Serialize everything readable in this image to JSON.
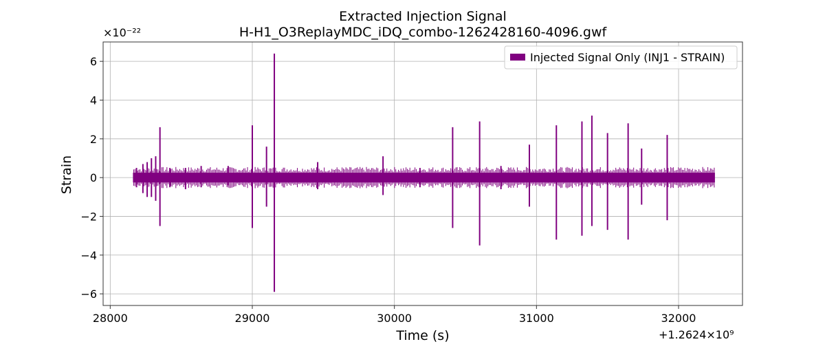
{
  "chart_data": {
    "type": "line",
    "title": "Extracted Injection Signal",
    "subtitle": "H-H1_O3ReplayMDC_iDQ_combo-1262428160-4096.gwf",
    "xlabel": "Time (s)",
    "ylabel": "Strain",
    "y_multiplier": "×10⁻²²",
    "x_offset": "+1.2624×10⁹",
    "xlim": [
      27950,
      32450
    ],
    "ylim": [
      -6.6,
      7.0
    ],
    "x_ticks": [
      28000,
      29000,
      30000,
      31000,
      32000
    ],
    "x_tick_labels": [
      "28000",
      "29000",
      "30000",
      "31000",
      "32000"
    ],
    "y_ticks": [
      -6,
      -4,
      -2,
      0,
      2,
      4,
      6
    ],
    "y_tick_labels": [
      "−6",
      "−4",
      "−2",
      "0",
      "2",
      "4",
      "6"
    ],
    "grid": true,
    "legend_position": "top-right",
    "series": [
      {
        "name": "Injected Signal Only (INJ1 - STRAIN)",
        "color": "#800080",
        "x_range": [
          28160,
          32256
        ],
        "baseline_amplitude": 0.25,
        "spikes": [
          {
            "x": 28185,
            "up": 0.5,
            "down": -0.5
          },
          {
            "x": 28230,
            "up": 0.7,
            "down": -0.8
          },
          {
            "x": 28260,
            "up": 0.8,
            "down": -1.0
          },
          {
            "x": 28290,
            "up": 1.0,
            "down": -1.0
          },
          {
            "x": 28320,
            "up": 1.1,
            "down": -1.2
          },
          {
            "x": 28350,
            "up": 2.6,
            "down": -2.5
          },
          {
            "x": 28420,
            "up": 0.5,
            "down": -0.5
          },
          {
            "x": 28530,
            "up": 0.5,
            "down": -0.6
          },
          {
            "x": 28640,
            "up": 0.6,
            "down": -0.5
          },
          {
            "x": 28830,
            "up": 0.6,
            "down": -0.4
          },
          {
            "x": 29000,
            "up": 2.7,
            "down": -2.6
          },
          {
            "x": 29100,
            "up": 1.6,
            "down": -1.5
          },
          {
            "x": 29155,
            "up": 6.4,
            "down": -5.9
          },
          {
            "x": 29460,
            "up": 0.8,
            "down": -0.6
          },
          {
            "x": 29920,
            "up": 1.1,
            "down": -0.9
          },
          {
            "x": 30180,
            "up": 0.5,
            "down": -0.5
          },
          {
            "x": 30410,
            "up": 2.6,
            "down": -2.6
          },
          {
            "x": 30600,
            "up": 2.9,
            "down": -3.5
          },
          {
            "x": 30750,
            "up": 0.6,
            "down": -0.6
          },
          {
            "x": 30950,
            "up": 1.7,
            "down": -1.5
          },
          {
            "x": 31140,
            "up": 2.7,
            "down": -3.2
          },
          {
            "x": 31320,
            "up": 2.9,
            "down": -3.0
          },
          {
            "x": 31390,
            "up": 3.2,
            "down": -2.5
          },
          {
            "x": 31500,
            "up": 2.3,
            "down": -2.7
          },
          {
            "x": 31645,
            "up": 2.8,
            "down": -3.2
          },
          {
            "x": 31740,
            "up": 1.5,
            "down": -1.4
          },
          {
            "x": 31920,
            "up": 2.2,
            "down": -2.2
          }
        ]
      }
    ]
  }
}
